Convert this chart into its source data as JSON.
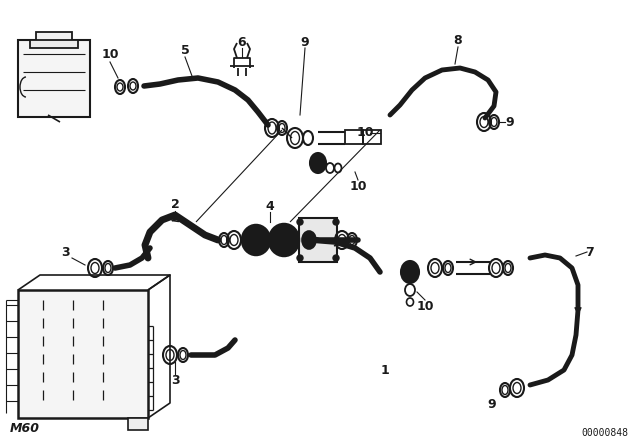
{
  "bg_color": "#ffffff",
  "line_color": "#1a1a1a",
  "watermark_text": "M60",
  "part_number": "00000848",
  "figsize": [
    6.4,
    4.48
  ],
  "dpi": 100
}
